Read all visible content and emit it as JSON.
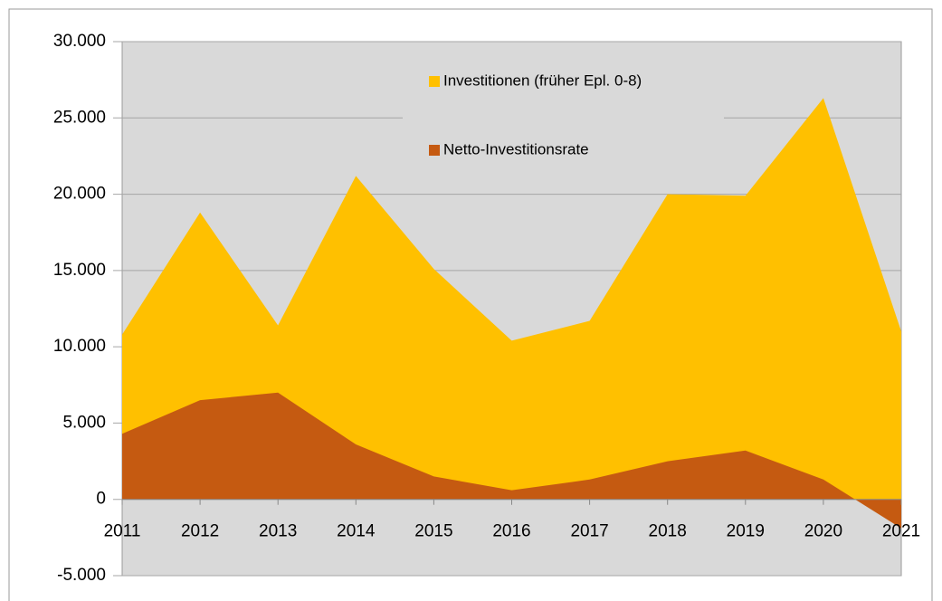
{
  "chart_data": {
    "type": "area",
    "categories": [
      "2011",
      "2012",
      "2013",
      "2014",
      "2015",
      "2016",
      "2017",
      "2018",
      "2019",
      "2020",
      "2021"
    ],
    "series": [
      {
        "name": "Investitionen (früher Epl. 0-8)",
        "color": "#ffc000",
        "values": [
          10800,
          18800,
          11400,
          21200,
          15100,
          10400,
          11700,
          20000,
          19900,
          26300,
          11000
        ]
      },
      {
        "name": "Netto-Investitionsrate",
        "color": "#c55a11",
        "values": [
          4300,
          6500,
          7000,
          3600,
          1500,
          600,
          1300,
          2500,
          3200,
          1300,
          -1900
        ]
      }
    ],
    "ylim": [
      -5000,
      30000
    ],
    "yticks": [
      {
        "value": -5000,
        "label": "-5.000"
      },
      0,
      {
        "value": 5000,
        "label": "5.000"
      },
      {
        "value": 10000,
        "label": "10.000"
      },
      {
        "value": 15000,
        "label": "15.000"
      },
      {
        "value": 20000,
        "label": "20.000"
      },
      {
        "value": 25000,
        "label": "25.000"
      },
      {
        "value": 30000,
        "label": "30.000"
      }
    ],
    "grid": true,
    "legend": "top"
  }
}
